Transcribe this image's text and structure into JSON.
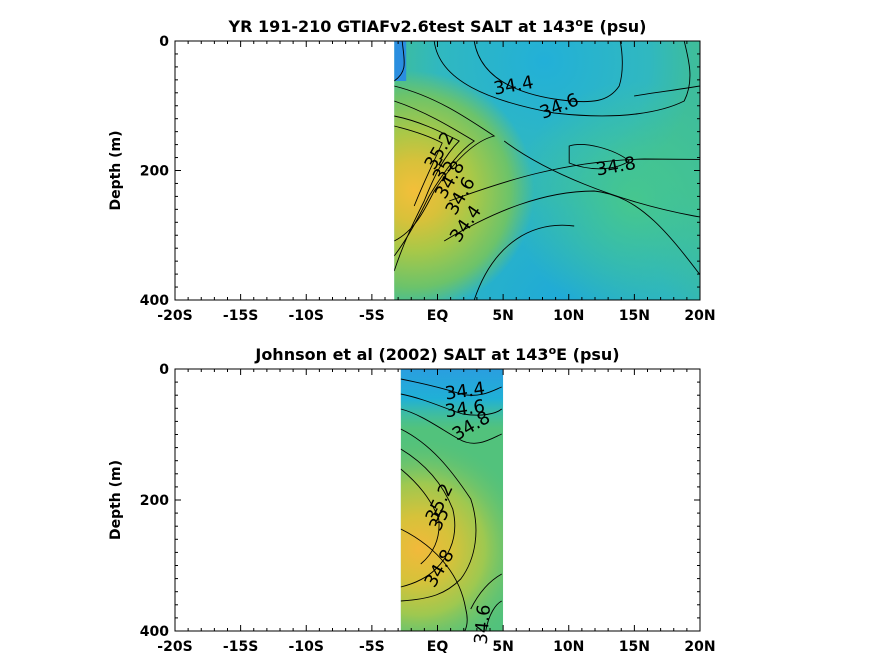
{
  "chart_data": [
    {
      "type": "heatmap",
      "title_main": "YR 191-210 GTIAFv2.6test SALT at 143",
      "title_sup": "o",
      "title_tail": "E (psu)",
      "xlabel": "",
      "ylabel": "Depth (m)",
      "xlim": [
        -20,
        20
      ],
      "ylim": [
        400,
        0
      ],
      "x_ticks": [
        {
          "value": -20,
          "label": "-20S"
        },
        {
          "value": -15,
          "label": "-15S"
        },
        {
          "value": -10,
          "label": "-10S"
        },
        {
          "value": -5,
          "label": "-5S"
        },
        {
          "value": 0,
          "label": "EQ"
        },
        {
          "value": 5,
          "label": "5N"
        },
        {
          "value": 10,
          "label": "10N"
        },
        {
          "value": 15,
          "label": "15N"
        },
        {
          "value": 20,
          "label": "20N"
        }
      ],
      "y_ticks": [
        {
          "value": 0,
          "label": "0"
        },
        {
          "value": 200,
          "label": "200"
        },
        {
          "value": 400,
          "label": "400"
        }
      ],
      "data_extent_x": [
        -3.3,
        20
      ],
      "contour_labels": [
        {
          "text": "34.4",
          "x": 5.8,
          "y": 70,
          "angle": -10
        },
        {
          "text": "34.6",
          "x": 9.3,
          "y": 102,
          "angle": -22
        },
        {
          "text": "35.2",
          "x": 0.2,
          "y": 170,
          "angle": -60
        },
        {
          "text": "35",
          "x": 0.5,
          "y": 200,
          "angle": -60
        },
        {
          "text": "34.8",
          "x": 1.0,
          "y": 215,
          "angle": -60
        },
        {
          "text": "34.6",
          "x": 1.8,
          "y": 240,
          "angle": -60
        },
        {
          "text": "34.4",
          "x": 2.2,
          "y": 283,
          "angle": -55
        },
        {
          "text": "34.8",
          "x": 13.6,
          "y": 195,
          "angle": -10
        }
      ]
    },
    {
      "type": "heatmap",
      "title_main": "Johnson et al (2002) SALT at 143",
      "title_sup": "o",
      "title_tail": "E (psu)",
      "xlabel": "",
      "ylabel": "Depth (m)",
      "xlim": [
        -20,
        20
      ],
      "ylim": [
        400,
        0
      ],
      "x_ticks": [
        {
          "value": -20,
          "label": "-20S"
        },
        {
          "value": -15,
          "label": "-15S"
        },
        {
          "value": -10,
          "label": "-10S"
        },
        {
          "value": -5,
          "label": "-5S"
        },
        {
          "value": 0,
          "label": "EQ"
        },
        {
          "value": 5,
          "label": "5N"
        },
        {
          "value": 10,
          "label": "10N"
        },
        {
          "value": 15,
          "label": "15N"
        },
        {
          "value": 20,
          "label": "20N"
        }
      ],
      "y_ticks": [
        {
          "value": 0,
          "label": "0"
        },
        {
          "value": 200,
          "label": "200"
        },
        {
          "value": 400,
          "label": "400"
        }
      ],
      "data_extent_x": [
        -2.8,
        5.0
      ],
      "contour_labels": [
        {
          "text": "34.4",
          "x": 2.1,
          "y": 35,
          "angle": -8
        },
        {
          "text": "34.6",
          "x": 2.1,
          "y": 62,
          "angle": -8
        },
        {
          "text": "34.8",
          "x": 2.6,
          "y": 88,
          "angle": -30
        },
        {
          "text": "35.2",
          "x": 0.2,
          "y": 205,
          "angle": -65
        },
        {
          "text": "35",
          "x": 0.2,
          "y": 230,
          "angle": -65
        },
        {
          "text": "34.8",
          "x": 0.2,
          "y": 305,
          "angle": -60
        },
        {
          "text": "34.6",
          "x": 3.5,
          "y": 390,
          "angle": -85
        }
      ]
    }
  ]
}
